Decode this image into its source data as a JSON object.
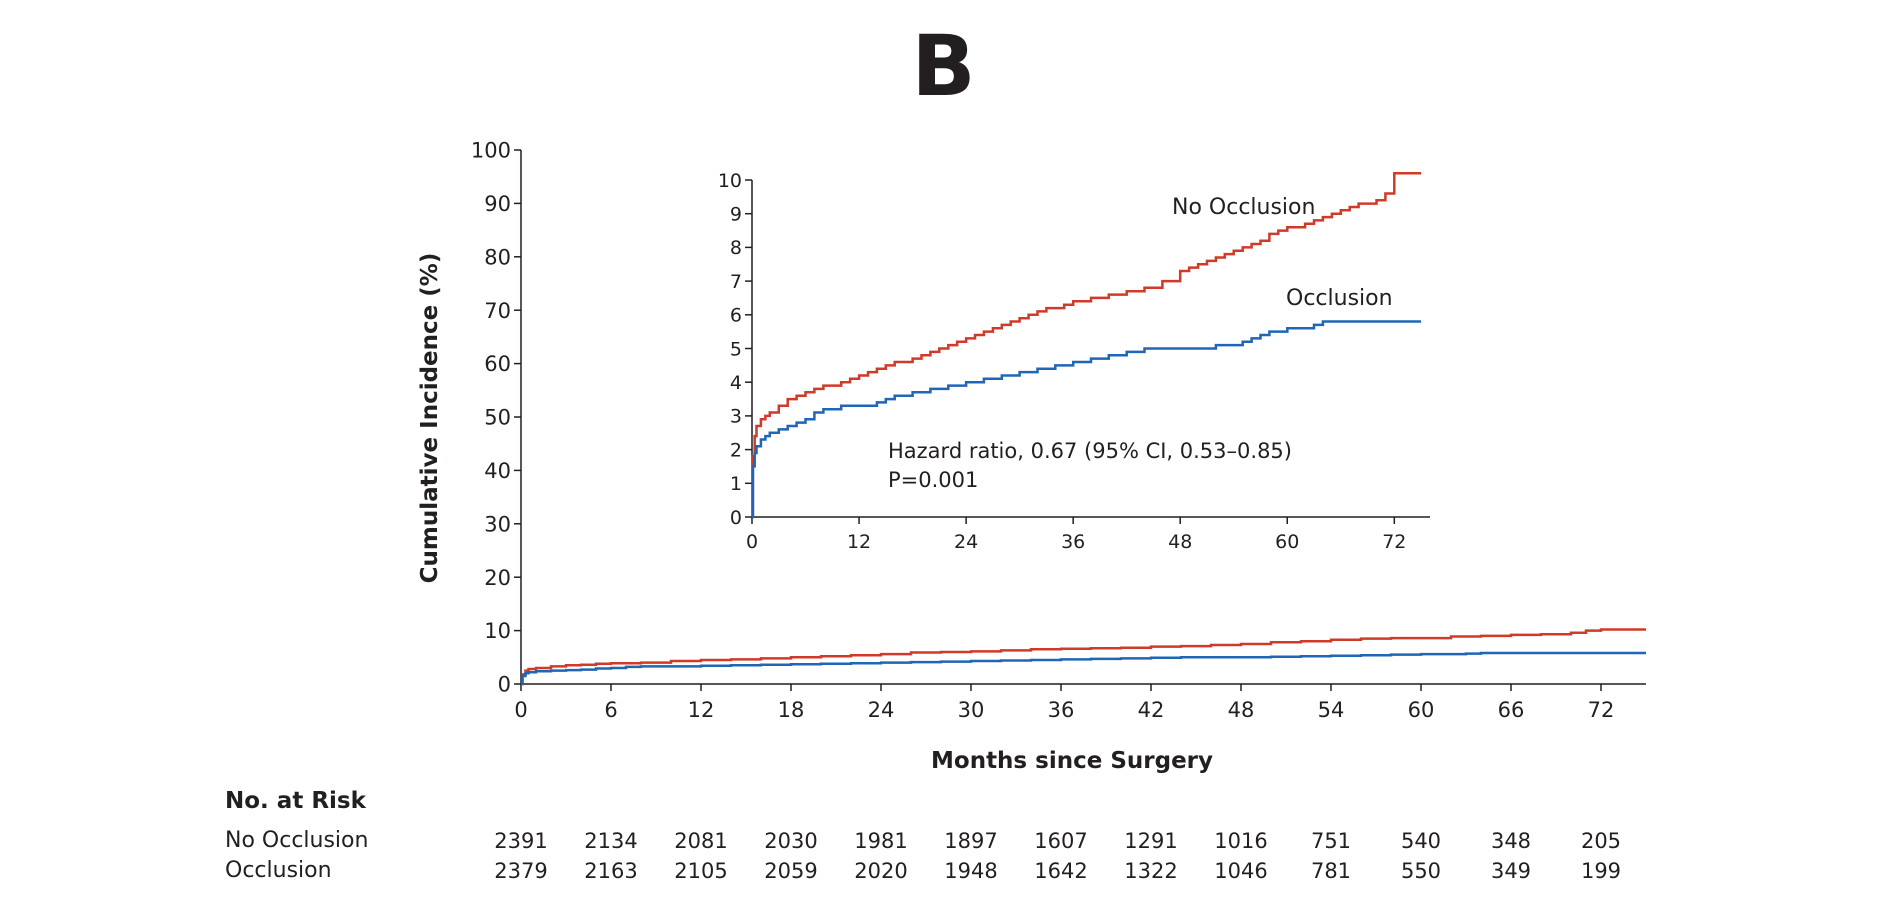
{
  "panel_label": "B",
  "chart_data": [
    {
      "type": "line",
      "title": "",
      "xlabel": "Months since Surgery",
      "ylabel": "Cumulative Incidence (%)",
      "xlim": [
        0,
        75
      ],
      "ylim": [
        0,
        100
      ],
      "xticks": [
        0,
        6,
        12,
        18,
        24,
        30,
        36,
        42,
        48,
        54,
        60,
        66,
        72
      ],
      "yticks": [
        0,
        10,
        20,
        30,
        40,
        50,
        60,
        70,
        80,
        90,
        100
      ],
      "step": true,
      "grid": false,
      "series": [
        {
          "name": "No Occlusion",
          "color": "#d03a29",
          "x": [
            0,
            0.1,
            0.3,
            0.5,
            1,
            2,
            3,
            4,
            5,
            6,
            8,
            10,
            12,
            14,
            16,
            18,
            20,
            22,
            24,
            26,
            28,
            30,
            32,
            34,
            36,
            38,
            40,
            42,
            44,
            46,
            48,
            50,
            52,
            54,
            56,
            58,
            60,
            62,
            64,
            66,
            68,
            70,
            71,
            72,
            75
          ],
          "y": [
            0,
            1.8,
            2.5,
            2.8,
            3.0,
            3.3,
            3.5,
            3.6,
            3.8,
            3.9,
            4.0,
            4.3,
            4.5,
            4.6,
            4.8,
            5.0,
            5.2,
            5.4,
            5.6,
            5.9,
            6.0,
            6.1,
            6.3,
            6.5,
            6.6,
            6.7,
            6.8,
            7.0,
            7.1,
            7.3,
            7.5,
            7.8,
            8.0,
            8.3,
            8.5,
            8.6,
            8.6,
            8.9,
            9.0,
            9.2,
            9.3,
            9.6,
            10.0,
            10.2,
            10.2
          ]
        },
        {
          "name": "Occlusion",
          "color": "#1f66b6",
          "x": [
            0,
            0.1,
            0.3,
            0.5,
            1,
            2,
            3,
            4,
            5,
            6,
            7,
            8,
            10,
            12,
            14,
            16,
            18,
            20,
            22,
            24,
            26,
            28,
            30,
            32,
            34,
            36,
            38,
            40,
            42,
            44,
            46,
            48,
            50,
            52,
            54,
            56,
            58,
            60,
            62,
            63,
            64,
            66,
            68,
            70,
            72,
            75
          ],
          "y": [
            0,
            1.5,
            2.0,
            2.2,
            2.4,
            2.5,
            2.6,
            2.7,
            2.9,
            3.0,
            3.2,
            3.3,
            3.3,
            3.4,
            3.5,
            3.6,
            3.7,
            3.8,
            3.9,
            4.0,
            4.1,
            4.2,
            4.3,
            4.4,
            4.5,
            4.6,
            4.7,
            4.8,
            4.9,
            5.0,
            5.0,
            5.0,
            5.1,
            5.2,
            5.3,
            5.4,
            5.5,
            5.6,
            5.6,
            5.7,
            5.8,
            5.8,
            5.8,
            5.8,
            5.8,
            5.8
          ]
        }
      ]
    },
    {
      "type": "line",
      "inset": true,
      "title": "",
      "xlabel": "",
      "ylabel": "",
      "xlim": [
        0,
        76
      ],
      "ylim": [
        0,
        10
      ],
      "xticks": [
        0,
        12,
        24,
        36,
        48,
        60,
        72
      ],
      "yticks": [
        0,
        1,
        2,
        3,
        4,
        5,
        6,
        7,
        8,
        9,
        10
      ],
      "step": true,
      "annotations": [
        "Hazard ratio, 0.67 (95% CI, 0.53–0.85)",
        "P=0.001"
      ],
      "series_labels": [
        "No Occlusion",
        "Occlusion"
      ],
      "series": [
        {
          "name": "No Occlusion",
          "color": "#d03a29",
          "x": [
            0,
            0.1,
            0.3,
            0.5,
            1,
            1.5,
            2,
            3,
            4,
            5,
            6,
            7,
            8,
            9,
            10,
            11,
            12,
            13,
            14,
            15,
            16,
            17,
            18,
            19,
            20,
            21,
            22,
            23,
            24,
            25,
            26,
            27,
            28,
            29,
            30,
            31,
            32,
            33,
            34,
            35,
            36,
            38,
            40,
            42,
            44,
            46,
            48,
            49,
            50,
            51,
            52,
            53,
            54,
            55,
            56,
            57,
            58,
            59,
            60,
            61,
            62,
            63,
            64,
            65,
            66,
            67,
            68,
            69,
            70,
            71,
            72,
            75
          ],
          "y": [
            0,
            1.8,
            2.4,
            2.7,
            2.9,
            3.0,
            3.1,
            3.3,
            3.5,
            3.6,
            3.7,
            3.8,
            3.9,
            3.9,
            4.0,
            4.1,
            4.2,
            4.3,
            4.4,
            4.5,
            4.6,
            4.6,
            4.7,
            4.8,
            4.9,
            5.0,
            5.1,
            5.2,
            5.3,
            5.4,
            5.5,
            5.6,
            5.7,
            5.8,
            5.9,
            6.0,
            6.1,
            6.2,
            6.2,
            6.3,
            6.4,
            6.5,
            6.6,
            6.7,
            6.8,
            7.0,
            7.3,
            7.4,
            7.5,
            7.6,
            7.7,
            7.8,
            7.9,
            8.0,
            8.1,
            8.2,
            8.4,
            8.5,
            8.6,
            8.6,
            8.7,
            8.8,
            8.9,
            9.0,
            9.1,
            9.2,
            9.3,
            9.3,
            9.4,
            9.6,
            10.2,
            10.2
          ]
        },
        {
          "name": "Occlusion",
          "color": "#1f66b6",
          "x": [
            0,
            0.1,
            0.3,
            0.5,
            1,
            1.5,
            2,
            3,
            4,
            5,
            6,
            7,
            8,
            10,
            12,
            14,
            15,
            16,
            18,
            20,
            22,
            24,
            26,
            28,
            30,
            32,
            34,
            36,
            38,
            40,
            42,
            44,
            46,
            48,
            50,
            52,
            54,
            55,
            56,
            57,
            58,
            60,
            62,
            63,
            64,
            66,
            68,
            70,
            72,
            75
          ],
          "y": [
            0,
            1.5,
            1.9,
            2.1,
            2.3,
            2.4,
            2.5,
            2.6,
            2.7,
            2.8,
            2.9,
            3.1,
            3.2,
            3.3,
            3.3,
            3.4,
            3.5,
            3.6,
            3.7,
            3.8,
            3.9,
            4.0,
            4.1,
            4.2,
            4.3,
            4.4,
            4.5,
            4.6,
            4.7,
            4.8,
            4.9,
            5.0,
            5.0,
            5.0,
            5.0,
            5.1,
            5.1,
            5.2,
            5.3,
            5.4,
            5.5,
            5.6,
            5.6,
            5.7,
            5.8,
            5.8,
            5.8,
            5.8,
            5.8,
            5.8
          ]
        }
      ]
    }
  ],
  "risk_table": {
    "title": "No. at Risk",
    "rows": [
      {
        "label": "No Occlusion",
        "values": [
          "2391",
          "2134",
          "2081",
          "2030",
          "1981",
          "1897",
          "1607",
          "1291",
          "1016",
          "751",
          "540",
          "348",
          "205"
        ]
      },
      {
        "label": "Occlusion",
        "values": [
          "2379",
          "2163",
          "2105",
          "2059",
          "2020",
          "1948",
          "1642",
          "1322",
          "1046",
          "781",
          "550",
          "349",
          "199"
        ]
      }
    ]
  }
}
